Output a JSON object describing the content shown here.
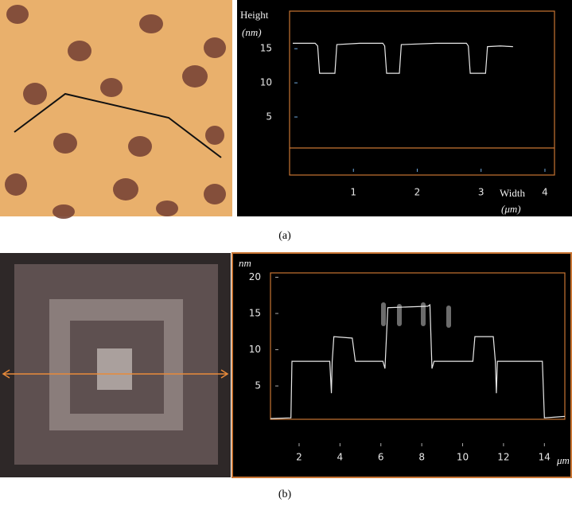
{
  "captions": [
    "(a)",
    "(b)"
  ],
  "chart_data": [
    {
      "type": "line",
      "ylabel": "Height",
      "yunit": "(nm)",
      "xlabel": "Width",
      "xunit": "(μm)",
      "xlim": [
        0,
        4.15
      ],
      "ylim": [
        -3.5,
        20.5
      ],
      "xticks": [
        1,
        2,
        3,
        4
      ],
      "yticks": [
        5,
        10,
        15
      ],
      "series": [
        {
          "color": "#e8e8e8",
          "x": [
            0.05,
            0.4,
            0.44,
            0.47,
            0.71,
            0.74,
            1.1,
            1.46,
            1.49,
            1.52,
            1.72,
            1.75,
            2.3,
            2.77,
            2.8,
            2.83,
            3.07,
            3.1,
            3.3,
            3.5
          ],
          "values": [
            15.8,
            15.8,
            15.4,
            11.4,
            11.4,
            15.6,
            15.8,
            15.8,
            15.4,
            11.4,
            11.4,
            15.6,
            15.8,
            15.8,
            15.4,
            11.4,
            11.4,
            15.3,
            15.4,
            15.3
          ]
        }
      ]
    },
    {
      "type": "line",
      "ylabel": "nm",
      "xlabel": "μm",
      "xlim": [
        0.6,
        15.0
      ],
      "ylim": [
        0.4,
        20.6
      ],
      "xticks": [
        2,
        4,
        6,
        8,
        10,
        12,
        14
      ],
      "yticks": [
        5,
        10,
        15,
        20
      ],
      "series": [
        {
          "color": "#e8e8e8",
          "x": [
            0.6,
            1.6,
            1.65,
            3.5,
            3.58,
            3.62,
            3.7,
            4.6,
            4.75,
            6.1,
            6.2,
            6.34,
            8.3,
            8.4,
            8.5,
            8.6,
            10.5,
            10.6,
            11.5,
            11.6,
            11.65,
            11.7,
            13.9,
            14.0,
            15.0
          ],
          "values": [
            0.5,
            0.6,
            8.4,
            8.4,
            4.0,
            8.4,
            11.8,
            11.6,
            8.4,
            8.4,
            7.4,
            15.8,
            16.0,
            16.2,
            7.4,
            8.4,
            8.4,
            11.8,
            11.8,
            8.4,
            4.0,
            8.4,
            8.4,
            0.6,
            0.8
          ]
        }
      ]
    }
  ]
}
